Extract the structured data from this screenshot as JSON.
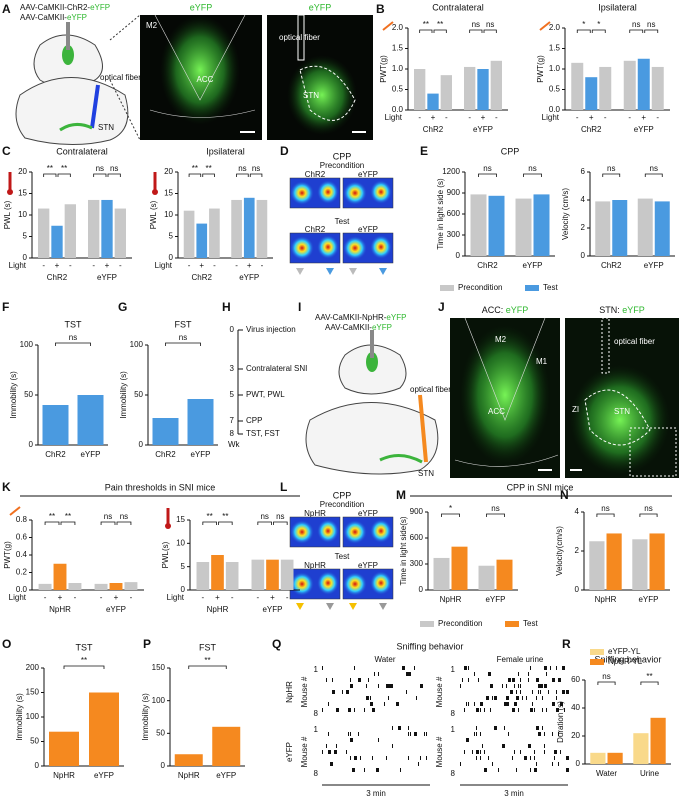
{
  "panel_labels": [
    "A",
    "B",
    "C",
    "D",
    "E",
    "F",
    "G",
    "H",
    "I",
    "J",
    "K",
    "L",
    "M",
    "N",
    "O",
    "P",
    "Q",
    "R"
  ],
  "a": {
    "virus1": "AAV-CaMKII-ChR2-",
    "virus2": "AAV-CaMKII-",
    "tag": "eYFP",
    "fiber": "optical fiber",
    "stn": "STN",
    "img1_title": "eYFP",
    "m2": "M2",
    "acc": "ACC",
    "img2_title": "eYFP",
    "img2_fiber": "optical fiber",
    "img2_stn": "STN"
  },
  "d": {
    "title": "CPP",
    "pre": "Precondition",
    "test": "Test",
    "groups": [
      "ChR2",
      "eYFP"
    ]
  },
  "h": {
    "steps": [
      {
        "wk": 0,
        "label": "Virus injection"
      },
      {
        "wk": 3,
        "label": "Contralateral SNI"
      },
      {
        "wk": 5,
        "label": "PWT, PWL"
      },
      {
        "wk": 7,
        "label": "CPP"
      },
      {
        "wk": 8,
        "label": "TST, FST"
      }
    ],
    "unit": "Wk"
  },
  "i": {
    "virus1": "AAV-CaMKII-NpHR-",
    "virus2": "AAV-CaMKII-",
    "tag": "eYFP",
    "fiber": "optical fiber",
    "stn": "STN"
  },
  "j": {
    "t1": "ACC: ",
    "t2": "STN: ",
    "tag": "eYFP",
    "m2": "M2",
    "m1": "M1",
    "acc": "ACC",
    "fiber": "optical fiber",
    "zi": "ZI",
    "stn": "STN"
  },
  "k_title": "Pain thresholds in SNI mice",
  "l": {
    "title": "CPP",
    "pre": "Precondition",
    "test": "Test",
    "groups": [
      "NpHR",
      "eYFP"
    ]
  },
  "m_title": "CPP in SNI mice",
  "q": {
    "title": "Sniffing behavior",
    "water": "Water",
    "urine": "Female urine",
    "groups": [
      "NpHR",
      "eYFP"
    ],
    "ylabel": "Mouse #",
    "rows": [
      "1",
      "8"
    ],
    "scale": "3 min"
  },
  "charts": [
    {
      "title": "Contralateral",
      "ylabel": "PWT(g)",
      "ylim": [
        0,
        2
      ],
      "yticks": [
        {
          "value": 0,
          "label": "0.0"
        },
        {
          "value": 0.5,
          "label": "0.5"
        },
        {
          "value": 1,
          "label": "1.0"
        },
        {
          "value": 1.5,
          "label": "1.5"
        },
        {
          "value": 2,
          "label": "2.0"
        }
      ],
      "groups": [
        "ChR2",
        "eYFP"
      ],
      "series": [
        {
          "color": "#c8c8c8",
          "values": [
            1.0,
            1.05
          ]
        },
        {
          "color": "#4a9ae0",
          "values": [
            0.4,
            1.0
          ]
        },
        {
          "color": "#c8c8c8",
          "values": [
            0.85,
            1.2
          ]
        }
      ],
      "xsigns": [
        "-",
        "+",
        "-"
      ],
      "xsign_label": "Light",
      "sig": [
        "**",
        "**",
        "ns",
        "ns"
      ]
    },
    {
      "title": "Ipsilateral",
      "ylabel": "PWT(g)",
      "ylim": [
        0,
        2
      ],
      "yticks": [
        {
          "value": 0,
          "label": "0.0"
        },
        {
          "value": 0.5,
          "label": "0.5"
        },
        {
          "value": 1,
          "label": "1.0"
        },
        {
          "value": 1.5,
          "label": "1.5"
        },
        {
          "value": 2,
          "label": "2.0"
        }
      ],
      "groups": [
        "ChR2",
        "eYFP"
      ],
      "series": [
        {
          "color": "#c8c8c8",
          "values": [
            1.15,
            1.2
          ]
        },
        {
          "color": "#4a9ae0",
          "values": [
            0.8,
            1.25
          ]
        },
        {
          "color": "#c8c8c8",
          "values": [
            1.05,
            1.05
          ]
        }
      ],
      "xsigns": [
        "-",
        "+",
        "-"
      ],
      "xsign_label": "Light",
      "sig": [
        "*",
        "*",
        "ns",
        "ns"
      ]
    },
    {
      "title": "Contralateral",
      "ylabel": "PWL (s)",
      "ylim": [
        0,
        20
      ],
      "yticks": [
        0,
        5,
        10,
        15,
        20
      ],
      "groups": [
        "ChR2",
        "eYFP"
      ],
      "series": [
        {
          "color": "#c8c8c8",
          "values": [
            11.5,
            13.5
          ]
        },
        {
          "color": "#4a9ae0",
          "values": [
            7.5,
            13.5
          ]
        },
        {
          "color": "#c8c8c8",
          "values": [
            12.5,
            11.5
          ]
        }
      ],
      "xsigns": [
        "-",
        "+",
        "-"
      ],
      "xsign_label": "Light",
      "sig": [
        "**",
        "**",
        "ns",
        "ns"
      ]
    },
    {
      "title": "Ipsilateral",
      "ylabel": "PWL (s)",
      "ylim": [
        0,
        20
      ],
      "yticks": [
        0,
        5,
        10,
        15,
        20
      ],
      "groups": [
        "ChR2",
        "eYFP"
      ],
      "series": [
        {
          "color": "#c8c8c8",
          "values": [
            11,
            13.5
          ]
        },
        {
          "color": "#4a9ae0",
          "values": [
            8,
            14
          ]
        },
        {
          "color": "#c8c8c8",
          "values": [
            11.5,
            13.5
          ]
        }
      ],
      "xsigns": [
        "-",
        "+",
        "-"
      ],
      "xsign_label": "Light",
      "sig": [
        "**",
        "**",
        "ns",
        "ns"
      ]
    },
    {
      "title": "CPP",
      "ylabel": "Time in light side (s)",
      "ylim": [
        0,
        1200
      ],
      "yticks": [
        0,
        300,
        600,
        900,
        1200
      ],
      "groups": [
        "ChR2",
        "eYFP"
      ],
      "series": [
        {
          "name": "Precondition",
          "color": "#c8c8c8",
          "values": [
            880,
            820
          ]
        },
        {
          "name": "Test",
          "color": "#4a9ae0",
          "values": [
            860,
            880
          ]
        }
      ],
      "sig": [
        "ns",
        "ns"
      ],
      "legend": true
    },
    {
      "ylabel": "Velocity (cm/s)",
      "ylim": [
        0,
        6
      ],
      "yticks": [
        0,
        2,
        4,
        6
      ],
      "groups": [
        "ChR2",
        "eYFP"
      ],
      "series": [
        {
          "color": "#c8c8c8",
          "values": [
            3.9,
            4.1
          ]
        },
        {
          "color": "#4a9ae0",
          "values": [
            4.0,
            3.9
          ]
        }
      ],
      "sig": [
        "ns",
        "ns"
      ]
    },
    {
      "title": "TST",
      "ylabel": "Immobility (s)",
      "ylim": [
        0,
        100
      ],
      "yticks": [
        0,
        50,
        100
      ],
      "groups": [
        "ChR2",
        "eYFP"
      ],
      "series": [
        {
          "color": "#4a9ae0",
          "values": [
            40,
            50
          ]
        }
      ],
      "sig": [
        "ns"
      ]
    },
    {
      "title": "FST",
      "ylabel": "Immobility (s)",
      "ylim": [
        0,
        100
      ],
      "yticks": [
        0,
        50,
        100
      ],
      "groups": [
        "ChR2",
        "eYFP"
      ],
      "series": [
        {
          "color": "#4a9ae0",
          "values": [
            27,
            46
          ]
        }
      ],
      "sig": [
        "ns"
      ]
    },
    {
      "ylabel": "PWT(g)",
      "ylim": [
        0,
        0.8
      ],
      "yticks": [
        {
          "value": 0,
          "label": "0.0"
        },
        {
          "value": 0.2,
          "label": "0.2"
        },
        {
          "value": 0.4,
          "label": "0.4"
        },
        {
          "value": 0.6,
          "label": "0.6"
        },
        {
          "value": 0.8,
          "label": "0.8"
        }
      ],
      "groups": [
        "NpHR",
        "eYFP"
      ],
      "series": [
        {
          "color": "#c8c8c8",
          "values": [
            0.07,
            0.07
          ]
        },
        {
          "color": "#f5891f",
          "values": [
            0.3,
            0.08
          ]
        },
        {
          "color": "#c8c8c8",
          "values": [
            0.08,
            0.09
          ]
        }
      ],
      "xsigns": [
        "-",
        "+",
        "-"
      ],
      "xsign_label": "Light",
      "sig": [
        "**",
        "**",
        "ns",
        "ns"
      ]
    },
    {
      "ylabel": "PWL(s)",
      "ylim": [
        0,
        15
      ],
      "yticks": [
        0,
        5,
        10,
        15
      ],
      "groups": [
        "NpHR",
        "eYFP"
      ],
      "series": [
        {
          "color": "#c8c8c8",
          "values": [
            6,
            6.5
          ]
        },
        {
          "color": "#f5891f",
          "values": [
            7.5,
            6.5
          ]
        },
        {
          "color": "#c8c8c8",
          "values": [
            6,
            6.5
          ]
        }
      ],
      "xsigns": [
        "-",
        "+",
        "-"
      ],
      "xsign_label": "Light",
      "sig": [
        "**",
        "**",
        "ns",
        "ns"
      ]
    },
    {
      "ylabel": "Time in light side(s)",
      "ylim": [
        0,
        900
      ],
      "yticks": [
        0,
        300,
        600,
        900
      ],
      "groups": [
        "NpHR",
        "eYFP"
      ],
      "series": [
        {
          "name": "Precondition",
          "color": "#c8c8c8",
          "values": [
            370,
            280
          ]
        },
        {
          "name": "Test",
          "color": "#f5891f",
          "values": [
            500,
            350
          ]
        }
      ],
      "sig": [
        "*",
        "ns"
      ],
      "legend": true
    },
    {
      "ylabel": "Velocity(cm/s)",
      "ylim": [
        0,
        4
      ],
      "yticks": [
        0,
        2,
        4
      ],
      "groups": [
        "NpHR",
        "eYFP"
      ],
      "series": [
        {
          "color": "#c8c8c8",
          "values": [
            2.5,
            2.6
          ]
        },
        {
          "color": "#f5891f",
          "values": [
            2.9,
            2.9
          ]
        }
      ],
      "sig": [
        "ns",
        "ns"
      ]
    },
    {
      "title": "TST",
      "ylabel": "Immobility (s)",
      "ylim": [
        0,
        200
      ],
      "yticks": [
        0,
        50,
        100,
        150,
        200
      ],
      "groups": [
        "NpHR",
        "eYFP"
      ],
      "series": [
        {
          "color": "#f5891f",
          "values": [
            70,
            150
          ]
        }
      ],
      "sig": [
        "**"
      ]
    },
    {
      "title": "FST",
      "ylabel": "Immobility (s)",
      "ylim": [
        0,
        150
      ],
      "yticks": [
        0,
        50,
        100,
        150
      ],
      "groups": [
        "NpHR",
        "eYFP"
      ],
      "series": [
        {
          "color": "#f5891f",
          "values": [
            18,
            60
          ]
        }
      ],
      "sig": [
        "**"
      ]
    },
    {
      "title": "Sniffing behavior",
      "ylabel": "Duration (s)",
      "ylim": [
        0,
        60
      ],
      "yticks": [
        0,
        20,
        40,
        60
      ],
      "groups": [
        "Water",
        "Urine"
      ],
      "series": [
        {
          "name": "eYFP-YL",
          "color": "#f9d98a",
          "values": [
            8,
            22
          ]
        },
        {
          "name": "NpHR-YL",
          "color": "#f5891f",
          "values": [
            8,
            33
          ]
        }
      ],
      "sig": [
        "ns",
        "**"
      ],
      "legend": true
    }
  ]
}
